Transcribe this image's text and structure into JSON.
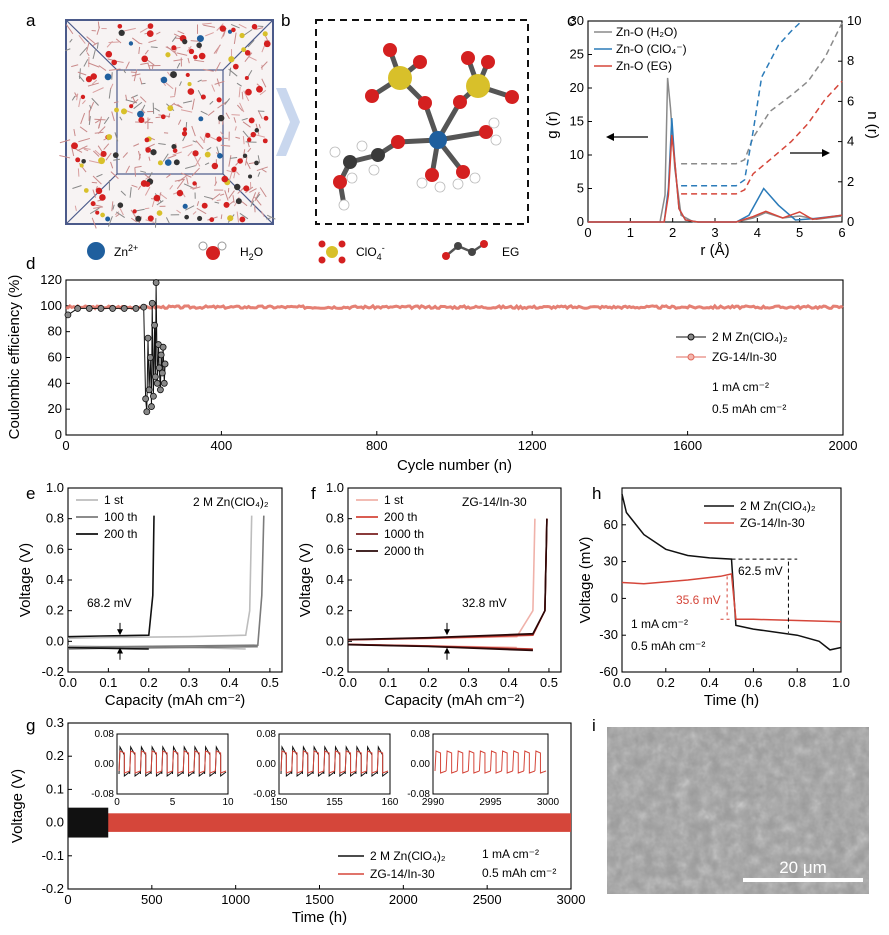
{
  "panel_letters": {
    "a": "a",
    "b": "b",
    "c": "c",
    "d": "d",
    "e": "e",
    "f": "f",
    "g": "g",
    "h": "h",
    "i": "i"
  },
  "legend_molecules": [
    {
      "name": "Zn-ion",
      "label": "Zn",
      "sup": "2+"
    },
    {
      "name": "water",
      "label": "H",
      "sub": "2",
      "after": "O"
    },
    {
      "name": "perchlorate",
      "label": "ClO",
      "sub": "4",
      "sup": "-"
    },
    {
      "name": "ethylene-glycol",
      "label": "EG"
    }
  ],
  "colors": {
    "black": "#111111",
    "gray": "#8a8a8a",
    "blue": "#2b7bb9",
    "red": "#d5463a",
    "redline": "#e06a5c",
    "dark_red": "#7a1f1f",
    "light_red": "#f0b2aa",
    "mid_gray": "#7b7b7b",
    "light_gray": "#bdbdbd"
  },
  "chart_data": [
    {
      "id": "c",
      "type": "line",
      "xlabel": "r (Å)",
      "ylabel_left": "g (r)",
      "ylabel_right": "n (r)",
      "xlim": [
        0,
        6
      ],
      "ylim_left": [
        0,
        30
      ],
      "ylim_right": [
        0,
        10
      ],
      "xticks": [
        "0",
        "1",
        "2",
        "3",
        "4",
        "5",
        "6"
      ],
      "yticks_left": [
        "0",
        "5",
        "10",
        "15",
        "20",
        "25",
        "30"
      ],
      "yticks_right": [
        "0",
        "2",
        "4",
        "6",
        "8",
        "10"
      ],
      "legend": [
        "Zn-O (H₂O)",
        "Zn-O (ClO₄⁻)",
        "Zn-O (EG)"
      ],
      "series": [
        {
          "name": "Zn-O (H2O) g(r)",
          "x": [
            0,
            1.7,
            1.82,
            1.88,
            1.95,
            2.05,
            2.2,
            2.5,
            3.5,
            3.9,
            4.2,
            4.6,
            5.0,
            5.4,
            6.0
          ],
          "y": [
            0,
            0,
            4,
            21.5,
            17,
            8,
            1,
            0,
            0,
            0.6,
            1.4,
            0.6,
            0.9,
            0.4,
            0.9
          ]
        },
        {
          "name": "Zn-O (ClO4) g(r)",
          "x": [
            0,
            1.8,
            1.9,
            1.98,
            2.05,
            2.15,
            2.3,
            2.6,
            3.5,
            3.8,
            4.15,
            4.5,
            4.9,
            5.3,
            6.0
          ],
          "y": [
            0,
            0,
            5,
            15.5,
            9,
            2,
            0.3,
            0,
            0,
            1,
            5,
            2.5,
            0.3,
            0.5,
            1
          ]
        },
        {
          "name": "Zn-O (EG) g(r)",
          "x": [
            0,
            1.8,
            1.9,
            1.98,
            2.05,
            2.15,
            2.3,
            2.6,
            3.5,
            3.9,
            4.2,
            4.6,
            5.0,
            5.3,
            6.0
          ],
          "y": [
            0,
            0,
            4,
            13,
            9,
            2,
            0.3,
            0,
            0,
            0.8,
            1.6,
            0.6,
            1.5,
            0.4,
            1
          ]
        },
        {
          "name": "Zn-O (H2O) n(r)",
          "x": [
            2.2,
            3.5,
            3.7,
            3.9,
            4.3,
            4.8,
            5.2,
            5.6,
            6.0
          ],
          "y": [
            2.9,
            2.9,
            3.1,
            4.2,
            5.5,
            6.3,
            7.0,
            8.2,
            9.9
          ]
        },
        {
          "name": "Zn-O (ClO4) n(r)",
          "x": [
            2.2,
            3.5,
            3.7,
            3.9,
            4.1,
            4.5,
            4.8,
            5.0
          ],
          "y": [
            1.8,
            1.8,
            2.1,
            4.5,
            7.2,
            8.8,
            9.5,
            9.9
          ]
        },
        {
          "name": "Zn-O (EG) n(r)",
          "x": [
            2.2,
            3.5,
            3.7,
            3.9,
            4.3,
            4.8,
            5.2,
            5.6,
            6.0
          ],
          "y": [
            1.4,
            1.4,
            1.6,
            2.4,
            3.1,
            4.0,
            4.9,
            6.1,
            7.0
          ]
        }
      ]
    },
    {
      "id": "d",
      "type": "scatter",
      "xlabel": "Cycle number (n)",
      "ylabel": "Coulombic efficiency (%)",
      "xlim": [
        0,
        2000
      ],
      "ylim": [
        0,
        120
      ],
      "xticks": [
        "0",
        "400",
        "800",
        "1200",
        "1600",
        "2000"
      ],
      "yticks": [
        "0",
        "20",
        "40",
        "60",
        "80",
        "100",
        "120"
      ],
      "legend": [
        "2 M Zn(ClO₄)₂",
        "ZG-14/In-30"
      ],
      "annotations": [
        "1 mA cm⁻²",
        "0.5 mAh cm⁻²"
      ],
      "series": [
        {
          "name": "2 M Zn(ClO4)2",
          "x": [
            5,
            30,
            60,
            90,
            120,
            150,
            180,
            200,
            205,
            208,
            211,
            214,
            217,
            220,
            222,
            225,
            228,
            230,
            232,
            235,
            238,
            240,
            243,
            245,
            248,
            250,
            253,
            255
          ],
          "y": [
            93,
            98,
            98,
            98,
            98,
            98,
            98,
            99,
            28,
            18,
            75,
            35,
            60,
            22,
            102,
            30,
            85,
            45,
            118,
            40,
            70,
            52,
            35,
            62,
            48,
            68,
            40,
            55
          ]
        },
        {
          "name": "ZG-14/In-30",
          "x": [
            0,
            2000
          ],
          "y": [
            99,
            99
          ]
        }
      ]
    },
    {
      "id": "e",
      "type": "line",
      "xlabel": "Capacity (mAh cm⁻²)",
      "ylabel": "Voltage (V)",
      "xlim": [
        0,
        0.53
      ],
      "ylim": [
        -0.2,
        1.0
      ],
      "xticks": [
        "0.0",
        "0.1",
        "0.2",
        "0.3",
        "0.4",
        "0.5"
      ],
      "yticks": [
        "-0.2",
        "0.0",
        "0.2",
        "0.4",
        "0.6",
        "0.8",
        "1.0"
      ],
      "title": "2 M Zn(ClO₄)₂",
      "legend": [
        "1 st",
        "100 th",
        "200 th"
      ],
      "annotation": "68.2 mV",
      "series": [
        {
          "name": "1 st",
          "x": [
            0,
            0.1,
            0.3,
            0.44,
            0.45,
            0.455
          ],
          "y": [
            0.02,
            0.025,
            0.03,
            0.04,
            0.2,
            0.82
          ]
        },
        {
          "name": "100 th",
          "x": [
            0,
            0.1,
            0.3,
            0.47,
            0.48,
            0.485
          ],
          "y": [
            -0.04,
            -0.035,
            -0.03,
            -0.025,
            0.3,
            0.82
          ],
          "neg": true
        },
        {
          "name": "200 th",
          "x": [
            0,
            0.08,
            0.2,
            0.21,
            0.213
          ],
          "y": [
            0.03,
            0.035,
            0.04,
            0.3,
            0.82
          ],
          "neg": true
        }
      ]
    },
    {
      "id": "f",
      "type": "line",
      "xlabel": "Capacity (mAh cm⁻²)",
      "ylabel": "Voltage (V)",
      "xlim": [
        0,
        0.53
      ],
      "ylim": [
        -0.2,
        1.0
      ],
      "xticks": [
        "0.0",
        "0.1",
        "0.2",
        "0.3",
        "0.4",
        "0.5"
      ],
      "yticks": [
        "-0.2",
        "0.0",
        "0.2",
        "0.4",
        "0.6",
        "0.8",
        "1.0"
      ],
      "title": "ZG-14/In-30",
      "legend": [
        "1 st",
        "200 th",
        "1000 th",
        "2000 th"
      ],
      "annotation": "32.8 mV",
      "series": [
        {
          "name": "1 st",
          "x": [
            0,
            0.2,
            0.42,
            0.46,
            0.465
          ],
          "y": [
            0.01,
            0.02,
            0.03,
            0.2,
            0.8
          ]
        },
        {
          "name": "200 th",
          "x": [
            0,
            0.2,
            0.46,
            0.49,
            0.495
          ],
          "y": [
            0.01,
            0.02,
            0.04,
            0.2,
            0.8
          ]
        },
        {
          "name": "1000 th",
          "x": [
            0,
            0.2,
            0.46,
            0.49,
            0.495
          ],
          "y": [
            0.01,
            0.022,
            0.045,
            0.2,
            0.8
          ]
        },
        {
          "name": "2000 th",
          "x": [
            0,
            0.2,
            0.46,
            0.49,
            0.495
          ],
          "y": [
            0.012,
            0.024,
            0.05,
            0.2,
            0.8
          ]
        }
      ]
    },
    {
      "id": "h",
      "type": "line",
      "xlabel": "Time (h)",
      "ylabel": "Voltage (mV)",
      "xlim": [
        0,
        1.0
      ],
      "ylim": [
        -60,
        90
      ],
      "xticks": [
        "0.0",
        "0.2",
        "0.4",
        "0.6",
        "0.8",
        "1.0"
      ],
      "yticks": [
        "-60",
        "-30",
        "0",
        "30",
        "60"
      ],
      "legend": [
        "2 M Zn(ClO₄)₂",
        "ZG-14/In-30"
      ],
      "annotations": [
        "62.5 mV",
        "35.6 mV",
        "1 mA cm⁻²",
        "0.5 mAh cm⁻²"
      ],
      "series": [
        {
          "name": "2 M Zn(ClO4)2",
          "x": [
            0,
            0.02,
            0.1,
            0.2,
            0.3,
            0.4,
            0.5,
            0.52,
            0.6,
            0.8,
            0.9,
            0.95,
            1.0
          ],
          "y": [
            85,
            70,
            52,
            40,
            35,
            33,
            32,
            -22,
            -25,
            -30,
            -35,
            -42,
            -40
          ]
        },
        {
          "name": "ZG-14/In-30",
          "x": [
            0,
            0.1,
            0.3,
            0.45,
            0.5,
            0.52,
            0.6,
            0.8,
            1.0
          ],
          "y": [
            13,
            12,
            15,
            18,
            20,
            -17,
            -17,
            -18,
            -19
          ]
        }
      ]
    },
    {
      "id": "g",
      "type": "line",
      "xlabel": "Time (h)",
      "ylabel": "Voltage (V)",
      "xlim": [
        0,
        3000
      ],
      "ylim": [
        -0.2,
        0.3
      ],
      "xticks": [
        "0",
        "500",
        "1000",
        "1500",
        "2000",
        "2500",
        "3000"
      ],
      "yticks": [
        "-0.2",
        "-0.1",
        "0.0",
        "0.1",
        "0.2",
        "0.3"
      ],
      "legend": [
        "2 M Zn(ClO₄)₂",
        "ZG-14/In-30"
      ],
      "annotations": [
        "1 mA cm⁻²",
        "0.5 mAh cm⁻²"
      ],
      "series": [
        {
          "name": "2 M Zn(ClO4)2",
          "x": [
            0,
            240
          ],
          "amplitude": 0.045
        },
        {
          "name": "ZG-14/In-30",
          "x": [
            0,
            3000
          ],
          "amplitude": 0.028
        }
      ],
      "insets": [
        {
          "xlim": [
            0,
            10
          ],
          "xticks": [
            "0",
            "5",
            "10"
          ],
          "yticks": [
            "-0.08",
            "0.00",
            "0.08"
          ]
        },
        {
          "xlim": [
            150,
            160
          ],
          "xticks": [
            "150",
            "155",
            "160"
          ],
          "yticks": [
            "-0.08",
            "0.00",
            "0.08"
          ]
        },
        {
          "xlim": [
            2990,
            3000
          ],
          "xticks": [
            "2990",
            "2995",
            "3000"
          ],
          "yticks": [
            "-0.08",
            "0.00",
            "0.08"
          ]
        }
      ]
    }
  ],
  "panel_i": {
    "scale_bar": "20 μm"
  }
}
